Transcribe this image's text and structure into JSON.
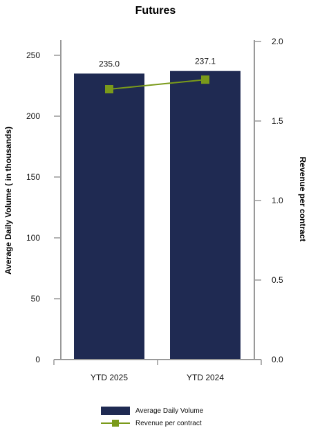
{
  "chart_data": {
    "type": "bar",
    "title": "Futures",
    "categories": [
      "YTD 2025",
      "YTD 2024"
    ],
    "series": [
      {
        "name": "Average Daily Volume",
        "kind": "bar",
        "axis": "left",
        "color": "#1f2a52",
        "values": [
          235.0,
          237.1
        ],
        "labels": [
          "235.0",
          "237.1"
        ]
      },
      {
        "name": "Revenue per contract",
        "kind": "line",
        "axis": "right",
        "color": "#7a9a1a",
        "values": [
          1.7,
          1.76
        ]
      }
    ],
    "ylabel": "Average Daily Volume ( in thousands)",
    "ylim": [
      0,
      250
    ],
    "yticks": [
      "0",
      "50",
      "100",
      "150",
      "200",
      "250"
    ],
    "y2label": "Revenue per contract",
    "y2lim": [
      0,
      2.0
    ],
    "y2ticks": [
      "0.0",
      "0.5",
      "1.0",
      "1.5",
      "2.0"
    ],
    "grid": false,
    "legend": "bottom"
  }
}
